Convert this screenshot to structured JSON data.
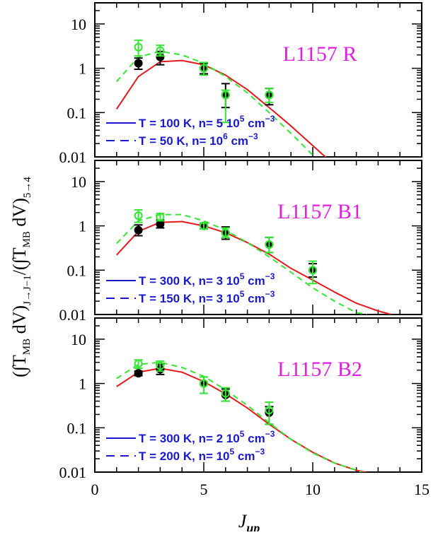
{
  "chart_data": {
    "type": "scatter",
    "xlabel": "J_up",
    "xlabel_main": "J",
    "xlabel_sub": "up",
    "ylabel": "(∫T_MB dV)_J→J−1 / (∫T_MB dV)_5→4",
    "ylabel_parts": {
      "open1": "(∫T",
      "sub_mb1": "MB",
      "mid1": " dV)",
      "sub_trans": "J→J−1",
      "slash": "/(∫T",
      "sub_mb2": "MB",
      "mid2": " dV)",
      "sub_ref": "5→4"
    },
    "xlim": [
      0,
      15
    ],
    "ylim": [
      0.01,
      30
    ],
    "yscale": "log",
    "x_ticks": [
      0,
      5,
      10,
      15
    ],
    "x_tick_labels": [
      "0",
      "5",
      "10",
      "15"
    ],
    "y_ticks": [
      0.01,
      0.1,
      1,
      10
    ],
    "y_tick_labels": [
      "0.01",
      "0.1",
      "1",
      "10"
    ],
    "colors": {
      "model_solid": "#e41a1c",
      "model_dashed": "#33e633",
      "obs_black": "#000000",
      "obs_green": "#33e633",
      "panel_label": "#e01ee0",
      "legend": "#1a1acc"
    },
    "panels": [
      {
        "label": "L1157 R",
        "legend": [
          {
            "style": "solid",
            "text": "T = 100 K, n= 5 10",
            "exp": "5",
            "unit": " cm",
            "unit_exp": "−3"
          },
          {
            "style": "dashed",
            "text": "T = 50 K, n= 10",
            "exp": "6",
            "unit": " cm",
            "unit_exp": "−3"
          }
        ],
        "model_solid": {
          "x": [
            1,
            2,
            3,
            4,
            5,
            6,
            7,
            8,
            9,
            10,
            10.8
          ],
          "y": [
            0.12,
            0.65,
            1.4,
            1.5,
            1.2,
            0.7,
            0.33,
            0.13,
            0.05,
            0.018,
            0.008
          ]
        },
        "model_dashed": {
          "x": [
            1,
            2,
            3,
            4,
            5,
            6,
            7,
            8,
            9,
            10,
            10.4
          ],
          "y": [
            0.5,
            1.8,
            2.4,
            2.0,
            1.3,
            0.65,
            0.28,
            0.1,
            0.034,
            0.011,
            0.007
          ]
        },
        "obs_black": [
          {
            "x": 2,
            "y": 1.3,
            "lo": 0.95,
            "hi": 1.7
          },
          {
            "x": 3,
            "y": 1.8,
            "lo": 1.2,
            "hi": 2.4
          },
          {
            "x": 5,
            "y": 1.0,
            "lo": 0.75,
            "hi": 1.3
          },
          {
            "x": 6,
            "y": 0.25,
            "lo": 0.13,
            "hi": 0.45
          },
          {
            "x": 8,
            "y": 0.25,
            "lo": 0.15,
            "hi": 0.35
          }
        ],
        "obs_green": [
          {
            "x": 2,
            "y": 3.0,
            "lo": 1.9,
            "hi": 4.3
          },
          {
            "x": 3,
            "y": 2.5,
            "lo": 1.9,
            "hi": 3.3
          },
          {
            "x": 5,
            "y": 1.0,
            "lo": 0.7,
            "hi": 1.35
          },
          {
            "x": 6,
            "y": 0.25,
            "lo": 0.06,
            "hi": 0.32
          },
          {
            "x": 8,
            "y": 0.25,
            "lo": 0.17,
            "hi": 0.35
          }
        ]
      },
      {
        "label": "L1157 B1",
        "legend": [
          {
            "style": "solid",
            "text": "T = 300 K, n= 3 10",
            "exp": "5",
            "unit": " cm",
            "unit_exp": "−3"
          },
          {
            "style": "dashed",
            "text": "T = 150 K, n= 3 10",
            "exp": "5",
            "unit": " cm",
            "unit_exp": "−3"
          }
        ],
        "model_solid": {
          "x": [
            1,
            2,
            3,
            4,
            5,
            6,
            7,
            8,
            9,
            10,
            11,
            12,
            13,
            13.6
          ],
          "y": [
            0.22,
            0.75,
            1.2,
            1.25,
            1.0,
            0.7,
            0.42,
            0.23,
            0.11,
            0.06,
            0.032,
            0.018,
            0.012,
            0.01
          ]
        },
        "model_dashed": {
          "x": [
            1,
            2,
            3,
            4,
            5,
            6,
            7,
            8,
            9,
            10,
            11,
            12,
            12.5
          ],
          "y": [
            0.4,
            1.3,
            1.8,
            1.8,
            1.3,
            0.8,
            0.42,
            0.2,
            0.09,
            0.04,
            0.02,
            0.011,
            0.01
          ]
        },
        "obs_black": [
          {
            "x": 2,
            "y": 0.8,
            "lo": 0.6,
            "hi": 1.05
          },
          {
            "x": 3,
            "y": 1.1,
            "lo": 0.9,
            "hi": 1.35
          },
          {
            "x": 5,
            "y": 1.0,
            "lo": 0.85,
            "hi": 1.15
          },
          {
            "x": 6,
            "y": 0.7,
            "lo": 0.5,
            "hi": 0.95
          },
          {
            "x": 8,
            "y": 0.38,
            "lo": 0.25,
            "hi": 0.55
          },
          {
            "x": 10,
            "y": 0.1,
            "lo": 0.07,
            "hi": 0.14
          }
        ],
        "obs_green": [
          {
            "x": 2,
            "y": 1.7,
            "lo": 1.2,
            "hi": 2.3
          },
          {
            "x": 3,
            "y": 1.6,
            "lo": 1.3,
            "hi": 1.9
          },
          {
            "x": 5,
            "y": 1.0,
            "lo": 0.85,
            "hi": 1.15
          },
          {
            "x": 6,
            "y": 0.7,
            "lo": 0.55,
            "hi": 0.9
          },
          {
            "x": 8,
            "y": 0.38,
            "lo": 0.25,
            "hi": 0.55
          },
          {
            "x": 10,
            "y": 0.1,
            "lo": 0.05,
            "hi": 0.16
          }
        ]
      },
      {
        "label": "L1157 B2",
        "legend": [
          {
            "style": "solid",
            "text": "T = 300 K, n= 2 10",
            "exp": "5",
            "unit": " cm",
            "unit_exp": "−3"
          },
          {
            "style": "dashed",
            "text": "T = 200 K, n= 10",
            "exp": "5",
            "unit": " cm",
            "unit_exp": "−3"
          }
        ],
        "model_solid": {
          "x": [
            1,
            2,
            3,
            4,
            5,
            6,
            7,
            8,
            9,
            10,
            11,
            12,
            12.8
          ],
          "y": [
            0.85,
            1.8,
            2.2,
            1.8,
            1.1,
            0.58,
            0.28,
            0.12,
            0.055,
            0.028,
            0.016,
            0.011,
            0.009
          ]
        },
        "model_dashed": {
          "x": [
            1,
            2,
            3,
            4,
            5,
            6,
            7,
            8,
            9,
            10,
            11,
            12,
            12.5
          ],
          "y": [
            1.3,
            2.7,
            3.0,
            2.3,
            1.45,
            0.72,
            0.32,
            0.13,
            0.055,
            0.027,
            0.016,
            0.011,
            0.009
          ]
        },
        "obs_black": [
          {
            "x": 2,
            "y": 1.7,
            "lo": 1.5,
            "hi": 1.9
          },
          {
            "x": 3,
            "y": 2.1,
            "lo": 1.6,
            "hi": 2.7
          },
          {
            "x": 5,
            "y": 1.0,
            "lo": 0.6,
            "hi": 1.4
          },
          {
            "x": 6,
            "y": 0.55,
            "lo": 0.4,
            "hi": 0.75
          },
          {
            "x": 8,
            "y": 0.22,
            "lo": 0.12,
            "hi": 0.3
          }
        ],
        "obs_green": [
          {
            "x": 2,
            "y": 2.8,
            "lo": 2.2,
            "hi": 3.4
          },
          {
            "x": 3,
            "y": 2.5,
            "lo": 1.9,
            "hi": 3.2
          },
          {
            "x": 5,
            "y": 1.0,
            "lo": 0.6,
            "hi": 1.4
          },
          {
            "x": 6,
            "y": 0.6,
            "lo": 0.4,
            "hi": 0.8
          },
          {
            "x": 8,
            "y": 0.25,
            "lo": 0.12,
            "hi": 0.38
          }
        ]
      }
    ]
  }
}
